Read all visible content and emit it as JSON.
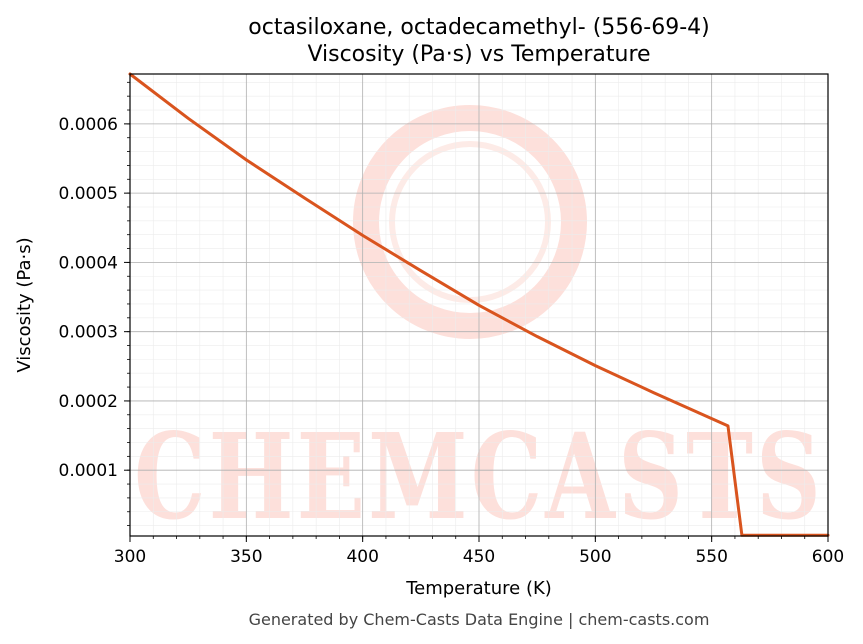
{
  "chart_data": {
    "type": "line",
    "title": "octasiloxane, octadecamethyl- (556-69-4)",
    "subtitle": "Viscosity (Pa·s) vs Temperature",
    "xlabel": "Temperature (K)",
    "ylabel": "Viscosity (Pa·s)",
    "xlim": [
      300,
      600
    ],
    "ylim": [
      5e-06,
      0.000672
    ],
    "xticks": [
      300,
      350,
      400,
      450,
      500,
      550,
      600
    ],
    "xtick_labels": [
      "300",
      "350",
      "400",
      "450",
      "500",
      "550",
      "600"
    ],
    "yticks": [
      0.0001,
      0.0002,
      0.0003,
      0.0004,
      0.0005,
      0.0006
    ],
    "ytick_labels": [
      "0.0001",
      "0.0002",
      "0.0003",
      "0.0004",
      "0.0005",
      "0.0006"
    ],
    "grid": true,
    "line_color": "#d9541e",
    "series": [
      {
        "x": [
          300,
          325,
          350,
          375,
          400,
          425,
          450,
          475,
          500,
          525,
          557,
          563,
          600
        ],
        "y": [
          0.000672,
          0.000608,
          0.000548,
          0.000493,
          0.000439,
          0.000388,
          0.000338,
          0.000293,
          0.000251,
          0.000212,
          0.000164,
          6e-06,
          6e-06
        ]
      }
    ]
  },
  "watermark_text": "CHEMCASTS",
  "footer": "Generated by Chem-Casts Data Engine | chem-casts.com"
}
